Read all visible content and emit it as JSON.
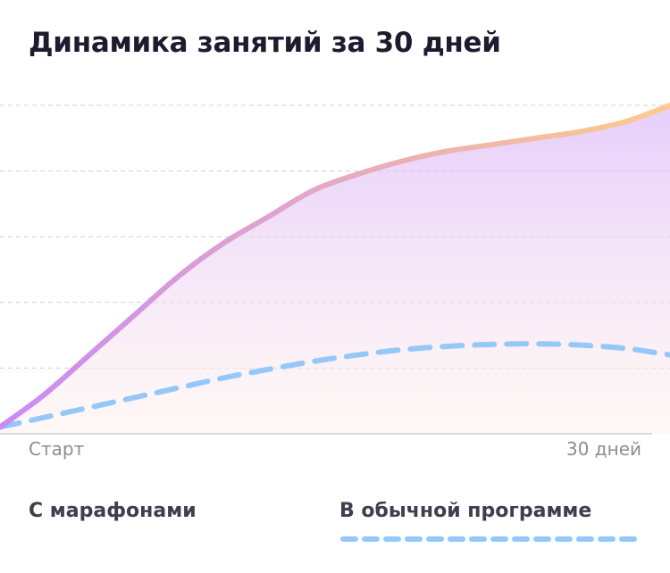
{
  "title": "Динамика занятий за 30 дней",
  "chart_data": {
    "type": "line",
    "title": "Динамика занятий за 30 дней",
    "x_tick_labels": [
      "Старт",
      "30 дней"
    ],
    "xlim": [
      0,
      30
    ],
    "ylim": [
      0,
      5
    ],
    "y_gridlines": [
      1,
      2,
      3,
      4,
      5
    ],
    "grid": true,
    "legend_position": "bottom",
    "series": [
      {
        "name": "С марафонами",
        "style": "solid-gradient",
        "color_start": "#c98af7",
        "color_end": "#ffca8a",
        "fill": true,
        "x": [
          0,
          2,
          4,
          6,
          8,
          10,
          12,
          14,
          16,
          18,
          20,
          22,
          24,
          26,
          28,
          30
        ],
        "y": [
          0.1,
          0.6,
          1.2,
          1.8,
          2.4,
          2.9,
          3.3,
          3.7,
          3.95,
          4.15,
          4.3,
          4.4,
          4.5,
          4.6,
          4.75,
          5.0
        ]
      },
      {
        "name": "В обычной программе",
        "style": "dashed",
        "color": "#94c8f8",
        "fill": false,
        "x": [
          0,
          2,
          4,
          6,
          8,
          10,
          12,
          14,
          16,
          18,
          20,
          22,
          24,
          26,
          28,
          30
        ],
        "y": [
          0.1,
          0.25,
          0.4,
          0.55,
          0.7,
          0.85,
          0.98,
          1.1,
          1.2,
          1.28,
          1.33,
          1.36,
          1.37,
          1.35,
          1.3,
          1.2
        ]
      }
    ]
  }
}
